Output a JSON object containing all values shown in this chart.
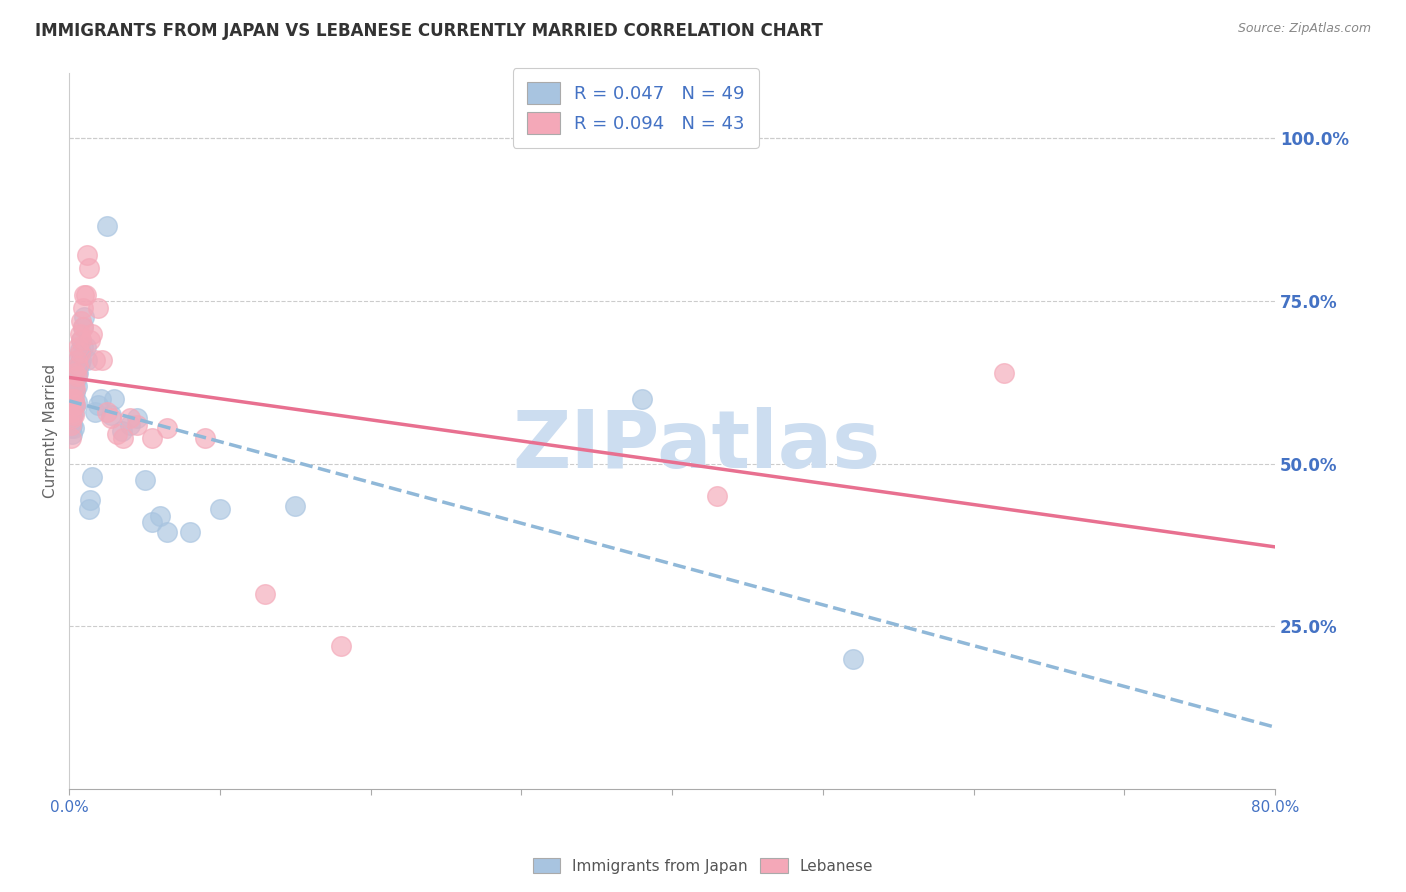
{
  "title": "IMMIGRANTS FROM JAPAN VS LEBANESE CURRENTLY MARRIED CORRELATION CHART",
  "source": "Source: ZipAtlas.com",
  "ylabel": "Currently Married",
  "right_yticks": [
    "100.0%",
    "75.0%",
    "50.0%",
    "25.0%"
  ],
  "right_ytick_vals": [
    1.0,
    0.75,
    0.5,
    0.25
  ],
  "legend_r1": "R = 0.047",
  "legend_n1": "N = 49",
  "legend_r2": "R = 0.094",
  "legend_n2": "N = 43",
  "legend_label1": "Immigrants from Japan",
  "legend_label2": "Lebanese",
  "color_japan": "#a8c4e0",
  "color_lebanese": "#f4a8b8",
  "color_text_blue": "#4472c4",
  "color_trendline_japan": "#90b8d8",
  "color_trendline_lebanese": "#e87090",
  "xmin": 0.0,
  "xmax": 0.8,
  "ymin": 0.0,
  "ymax": 1.1,
  "japan_x": [
    0.001,
    0.001,
    0.001,
    0.002,
    0.002,
    0.002,
    0.002,
    0.003,
    0.003,
    0.003,
    0.003,
    0.004,
    0.004,
    0.004,
    0.005,
    0.005,
    0.005,
    0.006,
    0.006,
    0.007,
    0.007,
    0.008,
    0.008,
    0.009,
    0.009,
    0.01,
    0.011,
    0.012,
    0.013,
    0.014,
    0.015,
    0.017,
    0.019,
    0.021,
    0.025,
    0.028,
    0.03,
    0.035,
    0.04,
    0.045,
    0.05,
    0.055,
    0.06,
    0.065,
    0.08,
    0.1,
    0.15,
    0.38,
    0.52
  ],
  "japan_y": [
    0.58,
    0.565,
    0.555,
    0.6,
    0.575,
    0.56,
    0.545,
    0.61,
    0.595,
    0.58,
    0.555,
    0.625,
    0.61,
    0.59,
    0.64,
    0.62,
    0.595,
    0.66,
    0.64,
    0.675,
    0.655,
    0.69,
    0.66,
    0.71,
    0.68,
    0.725,
    0.68,
    0.66,
    0.43,
    0.445,
    0.48,
    0.58,
    0.59,
    0.6,
    0.865,
    0.575,
    0.6,
    0.55,
    0.56,
    0.57,
    0.475,
    0.41,
    0.42,
    0.395,
    0.395,
    0.43,
    0.435,
    0.6,
    0.2
  ],
  "lebanese_x": [
    0.001,
    0.001,
    0.001,
    0.002,
    0.002,
    0.003,
    0.003,
    0.003,
    0.004,
    0.004,
    0.004,
    0.005,
    0.005,
    0.006,
    0.006,
    0.007,
    0.007,
    0.008,
    0.008,
    0.009,
    0.009,
    0.01,
    0.011,
    0.012,
    0.013,
    0.014,
    0.015,
    0.017,
    0.019,
    0.022,
    0.025,
    0.028,
    0.032,
    0.036,
    0.04,
    0.045,
    0.055,
    0.065,
    0.09,
    0.13,
    0.18,
    0.43,
    0.62
  ],
  "lebanese_y": [
    0.58,
    0.56,
    0.54,
    0.6,
    0.57,
    0.62,
    0.6,
    0.575,
    0.64,
    0.615,
    0.59,
    0.66,
    0.635,
    0.68,
    0.65,
    0.7,
    0.67,
    0.72,
    0.69,
    0.74,
    0.71,
    0.76,
    0.76,
    0.82,
    0.8,
    0.69,
    0.7,
    0.66,
    0.74,
    0.66,
    0.58,
    0.57,
    0.545,
    0.54,
    0.57,
    0.56,
    0.54,
    0.555,
    0.54,
    0.3,
    0.22,
    0.45,
    0.64
  ],
  "watermark": "ZIPatlas",
  "watermark_color": "#ccddf0"
}
